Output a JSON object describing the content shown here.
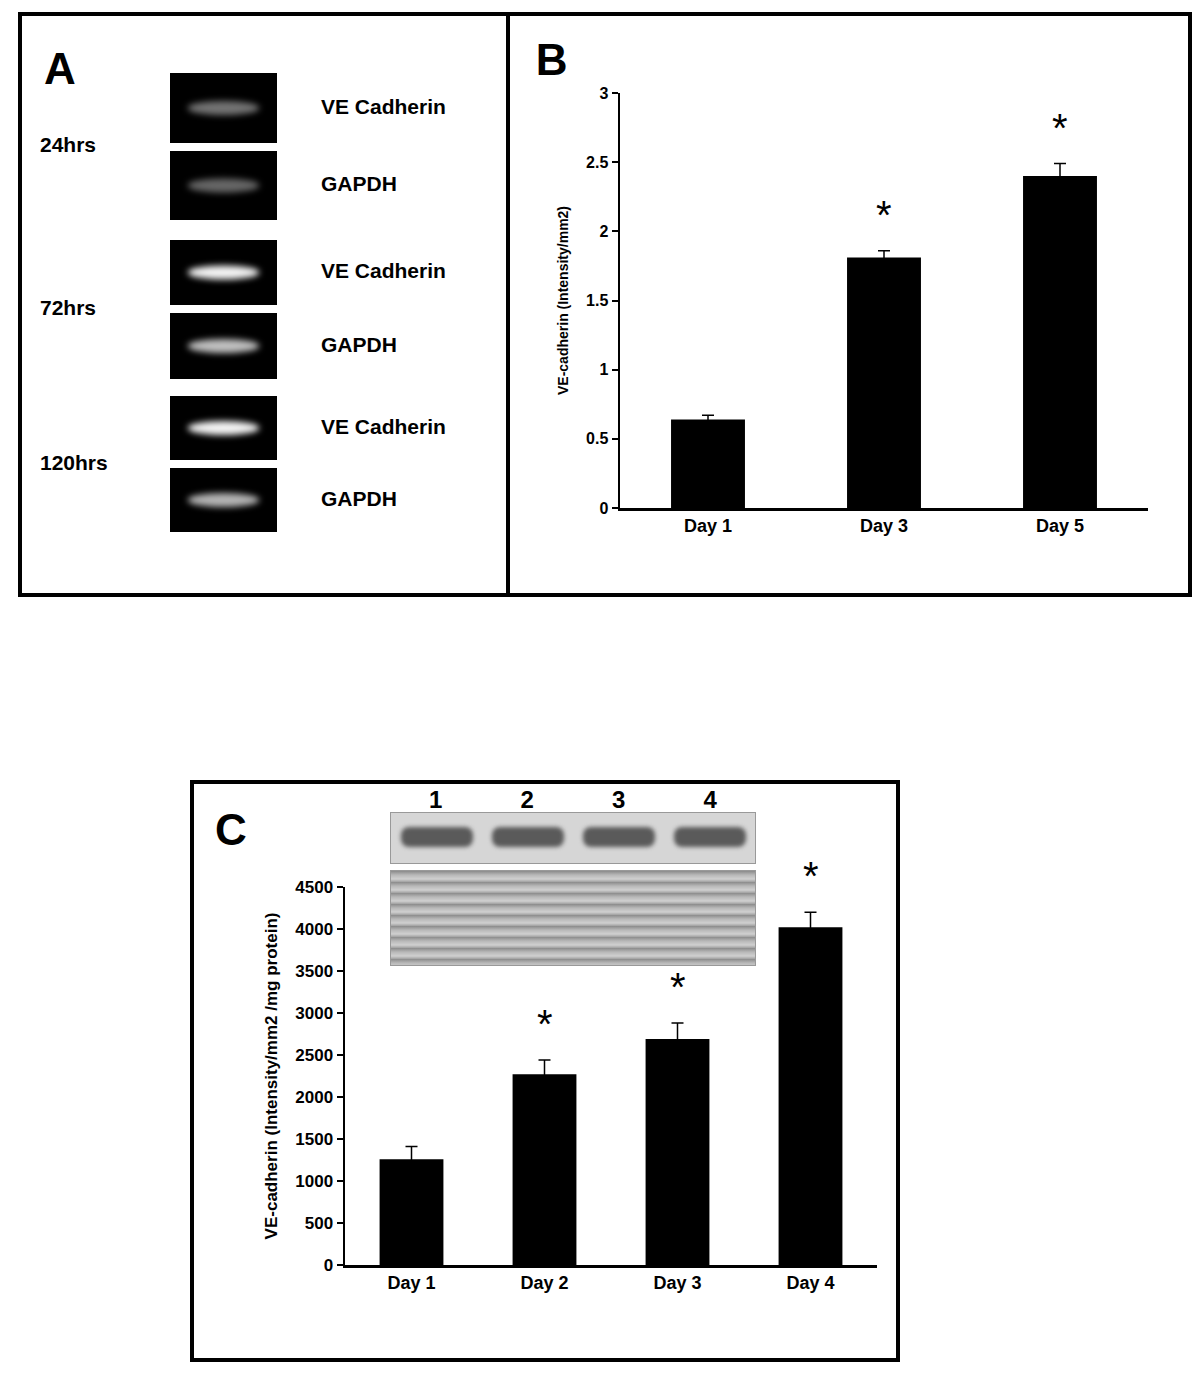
{
  "panel_a": {
    "title": "A",
    "rows": [
      {
        "label": "24hrs",
        "bands": [
          {
            "name": "VE Cadherin",
            "intensity": 0.45
          },
          {
            "name": "GAPDH",
            "intensity": 0.4
          }
        ]
      },
      {
        "label": "72hrs",
        "bands": [
          {
            "name": "VE Cadherin",
            "intensity": 0.95
          },
          {
            "name": "GAPDH",
            "intensity": 0.75
          }
        ]
      },
      {
        "label": "120hrs",
        "bands": [
          {
            "name": "VE Cadherin",
            "intensity": 0.95
          },
          {
            "name": "GAPDH",
            "intensity": 0.7
          }
        ]
      }
    ]
  },
  "chart_data": [
    {
      "type": "bar",
      "title": "B",
      "categories": [
        "Day 1",
        "Day 3",
        "Day 5"
      ],
      "values": [
        0.64,
        1.81,
        2.4
      ],
      "errors": [
        0.03,
        0.05,
        0.09
      ],
      "color": "#000000",
      "y_label": "VE-cadherin (Intensity/mm2)",
      "ylim": [
        0,
        3
      ],
      "yticks": [
        0,
        0.5,
        1,
        1.5,
        2,
        2.5,
        3
      ],
      "grid": false,
      "annotations": [
        {
          "category": "Day 3",
          "text": "*"
        },
        {
          "category": "Day 5",
          "text": "*"
        }
      ]
    },
    {
      "type": "bar",
      "title": "C",
      "categories": [
        "Day 1",
        "Day 2",
        "Day 3",
        "Day 4"
      ],
      "values": [
        1260,
        2270,
        2690,
        4020
      ],
      "errors": [
        150,
        170,
        190,
        180
      ],
      "color": "#000000",
      "y_label": "VE-cadherin (Intensity/mm2 /mg protein)",
      "ylim": [
        0,
        4500
      ],
      "yticks": [
        0,
        500,
        1000,
        1500,
        2000,
        2500,
        3000,
        3500,
        4000,
        4500
      ],
      "grid": false,
      "annotations": [
        {
          "category": "Day 2",
          "text": "*"
        },
        {
          "category": "Day 3",
          "text": "*"
        },
        {
          "category": "Day 4",
          "text": "*"
        }
      ],
      "inset": {
        "lanes": [
          "1",
          "2",
          "3",
          "4"
        ]
      }
    }
  ]
}
